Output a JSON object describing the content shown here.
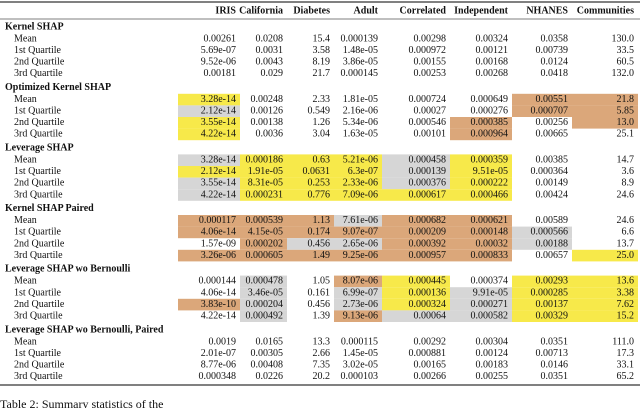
{
  "shades": {
    "yellow": "#f7e94a",
    "gray": "#d6d6d6",
    "orange": "#dba77a"
  },
  "header": {
    "columns": [
      "IRIS",
      "California",
      "Diabetes",
      "Adult",
      "Correlated",
      "Independent",
      "NHANES",
      "Communities"
    ]
  },
  "sections": [
    {
      "title": "Kernel SHAP",
      "rows": [
        {
          "label": "Mean",
          "cells": [
            {
              "text": "0.00261"
            },
            {
              "text": "0.0208"
            },
            {
              "text": "15.4"
            },
            {
              "text": "0.000139"
            },
            {
              "text": "0.00298"
            },
            {
              "text": "0.00324"
            },
            {
              "text": "0.0358"
            },
            {
              "text": "130.0"
            }
          ]
        },
        {
          "label": "1st Quartile",
          "cells": [
            {
              "text": "5.69e-07"
            },
            {
              "text": "0.0031"
            },
            {
              "text": "3.58"
            },
            {
              "text": "1.48e-05"
            },
            {
              "text": "0.000972"
            },
            {
              "text": "0.00121"
            },
            {
              "text": "0.00739"
            },
            {
              "text": "33.5"
            }
          ]
        },
        {
          "label": "2nd Quartile",
          "cells": [
            {
              "text": "9.52e-06"
            },
            {
              "text": "0.0043"
            },
            {
              "text": "8.19"
            },
            {
              "text": "3.86e-05"
            },
            {
              "text": "0.00155"
            },
            {
              "text": "0.00168"
            },
            {
              "text": "0.0124"
            },
            {
              "text": "60.5"
            }
          ]
        },
        {
          "label": "3rd Quartile",
          "cells": [
            {
              "text": "0.00181"
            },
            {
              "text": "0.029"
            },
            {
              "text": "21.7"
            },
            {
              "text": "0.000145"
            },
            {
              "text": "0.00253"
            },
            {
              "text": "0.00268"
            },
            {
              "text": "0.0418"
            },
            {
              "text": "132.0"
            }
          ]
        }
      ]
    },
    {
      "title": "Optimized Kernel SHAP",
      "rows": [
        {
          "label": "Mean",
          "cells": [
            {
              "text": "3.28e-14",
              "shade": "yellow"
            },
            {
              "text": "0.00248"
            },
            {
              "text": "2.33"
            },
            {
              "text": "1.81e-05"
            },
            {
              "text": "0.000724"
            },
            {
              "text": "0.000649"
            },
            {
              "text": "0.00551",
              "shade": "orange"
            },
            {
              "text": "21.8",
              "shade": "orange"
            }
          ]
        },
        {
          "label": "1st Quartile",
          "cells": [
            {
              "text": "2.12e-14",
              "shade": "gray"
            },
            {
              "text": "0.00126"
            },
            {
              "text": "0.549"
            },
            {
              "text": "2.16e-06"
            },
            {
              "text": "0.00027"
            },
            {
              "text": "0.000276"
            },
            {
              "text": "0.000707",
              "shade": "orange"
            },
            {
              "text": "5.85",
              "shade": "orange"
            }
          ]
        },
        {
          "label": "2nd Quartile",
          "cells": [
            {
              "text": "3.55e-14",
              "shade": "yellow"
            },
            {
              "text": "0.00138"
            },
            {
              "text": "1.26"
            },
            {
              "text": "5.34e-06"
            },
            {
              "text": "0.000546"
            },
            {
              "text": "0.000385",
              "shade": "orange"
            },
            {
              "text": "0.00256"
            },
            {
              "text": "13.0",
              "shade": "orange"
            }
          ]
        },
        {
          "label": "3rd Quartile",
          "cells": [
            {
              "text": "4.22e-14",
              "shade": "yellow"
            },
            {
              "text": "0.0036"
            },
            {
              "text": "3.04"
            },
            {
              "text": "1.63e-05"
            },
            {
              "text": "0.00101"
            },
            {
              "text": "0.000964",
              "shade": "orange"
            },
            {
              "text": "0.00665"
            },
            {
              "text": "25.1"
            }
          ]
        }
      ]
    },
    {
      "title": "Leverage SHAP",
      "rows": [
        {
          "label": "Mean",
          "cells": [
            {
              "text": "3.28e-14",
              "shade": "gray"
            },
            {
              "text": "0.000186",
              "shade": "yellow"
            },
            {
              "text": "0.63",
              "shade": "yellow"
            },
            {
              "text": "5.21e-06",
              "shade": "yellow"
            },
            {
              "text": "0.000458",
              "shade": "gray"
            },
            {
              "text": "0.000359",
              "shade": "yellow"
            },
            {
              "text": "0.00385"
            },
            {
              "text": "14.7"
            }
          ]
        },
        {
          "label": "1st Quartile",
          "cells": [
            {
              "text": "2.12e-14",
              "shade": "yellow"
            },
            {
              "text": "1.91e-05",
              "shade": "yellow"
            },
            {
              "text": "0.0631",
              "shade": "yellow"
            },
            {
              "text": "6.3e-07",
              "shade": "yellow"
            },
            {
              "text": "0.000139",
              "shade": "gray"
            },
            {
              "text": "9.51e-05",
              "shade": "yellow"
            },
            {
              "text": "0.000364"
            },
            {
              "text": "3.6"
            }
          ]
        },
        {
          "label": "2nd Quartile",
          "cells": [
            {
              "text": "3.55e-14",
              "shade": "gray"
            },
            {
              "text": "8.31e-05",
              "shade": "yellow"
            },
            {
              "text": "0.253",
              "shade": "yellow"
            },
            {
              "text": "2.33e-06",
              "shade": "yellow"
            },
            {
              "text": "0.000376",
              "shade": "gray"
            },
            {
              "text": "0.000222",
              "shade": "yellow"
            },
            {
              "text": "0.00149"
            },
            {
              "text": "8.9"
            }
          ]
        },
        {
          "label": "3rd Quartile",
          "cells": [
            {
              "text": "4.22e-14",
              "shade": "gray"
            },
            {
              "text": "0.000231",
              "shade": "yellow"
            },
            {
              "text": "0.776",
              "shade": "yellow"
            },
            {
              "text": "7.09e-06",
              "shade": "yellow"
            },
            {
              "text": "0.000617",
              "shade": "yellow"
            },
            {
              "text": "0.000466",
              "shade": "yellow"
            },
            {
              "text": "0.00424"
            },
            {
              "text": "24.6"
            }
          ]
        }
      ]
    },
    {
      "title": "Kernel SHAP Paired",
      "rows": [
        {
          "label": "Mean",
          "cells": [
            {
              "text": "0.000117",
              "shade": "orange"
            },
            {
              "text": "0.000539",
              "shade": "orange"
            },
            {
              "text": "1.13",
              "shade": "orange"
            },
            {
              "text": "7.61e-06",
              "shade": "gray"
            },
            {
              "text": "0.000682",
              "shade": "orange"
            },
            {
              "text": "0.000621",
              "shade": "orange"
            },
            {
              "text": "0.00589"
            },
            {
              "text": "24.6"
            }
          ]
        },
        {
          "label": "1st Quartile",
          "cells": [
            {
              "text": "4.06e-14",
              "shade": "orange"
            },
            {
              "text": "4.15e-05",
              "shade": "orange"
            },
            {
              "text": "0.174",
              "shade": "orange"
            },
            {
              "text": "9.07e-07",
              "shade": "orange"
            },
            {
              "text": "0.000209",
              "shade": "orange"
            },
            {
              "text": "0.000148",
              "shade": "orange"
            },
            {
              "text": "0.000566",
              "shade": "gray"
            },
            {
              "text": "6.6"
            }
          ]
        },
        {
          "label": "2nd Quartile",
          "cells": [
            {
              "text": "1.57e-09"
            },
            {
              "text": "0.000202",
              "shade": "orange"
            },
            {
              "text": "0.456",
              "shade": "gray"
            },
            {
              "text": "2.65e-06",
              "shade": "gray"
            },
            {
              "text": "0.000392",
              "shade": "orange"
            },
            {
              "text": "0.00032",
              "shade": "orange"
            },
            {
              "text": "0.00188",
              "shade": "gray"
            },
            {
              "text": "13.7"
            }
          ]
        },
        {
          "label": "3rd Quartile",
          "cells": [
            {
              "text": "3.26e-06",
              "shade": "orange"
            },
            {
              "text": "0.000605",
              "shade": "orange"
            },
            {
              "text": "1.49",
              "shade": "orange"
            },
            {
              "text": "9.25e-06",
              "shade": "orange"
            },
            {
              "text": "0.000957",
              "shade": "orange"
            },
            {
              "text": "0.000833",
              "shade": "orange"
            },
            {
              "text": "0.00657"
            },
            {
              "text": "25.0",
              "shade": "yellow"
            }
          ]
        }
      ]
    },
    {
      "title": "Leverage SHAP wo Bernoulli",
      "rows": [
        {
          "label": "Mean",
          "cells": [
            {
              "text": "0.000144"
            },
            {
              "text": "0.000478",
              "shade": "gray"
            },
            {
              "text": "1.05"
            },
            {
              "text": "8.07e-06",
              "shade": "orange"
            },
            {
              "text": "0.000445",
              "shade": "yellow"
            },
            {
              "text": "0.000374"
            },
            {
              "text": "0.00293",
              "shade": "yellow"
            },
            {
              "text": "13.6",
              "shade": "yellow"
            }
          ]
        },
        {
          "label": "1st Quartile",
          "cells": [
            {
              "text": "4.06e-14"
            },
            {
              "text": "3.46e-05",
              "shade": "gray"
            },
            {
              "text": "0.161"
            },
            {
              "text": "6.99e-07",
              "shade": "gray"
            },
            {
              "text": "0.000136",
              "shade": "yellow"
            },
            {
              "text": "9.91e-05",
              "shade": "gray"
            },
            {
              "text": "0.000285",
              "shade": "yellow"
            },
            {
              "text": "3.38",
              "shade": "yellow"
            }
          ]
        },
        {
          "label": "2nd Quartile",
          "cells": [
            {
              "text": "3.83e-10",
              "shade": "orange"
            },
            {
              "text": "0.000204",
              "shade": "gray"
            },
            {
              "text": "0.456"
            },
            {
              "text": "2.73e-06",
              "shade": "gray"
            },
            {
              "text": "0.000324",
              "shade": "yellow"
            },
            {
              "text": "0.000271",
              "shade": "gray"
            },
            {
              "text": "0.00137",
              "shade": "yellow"
            },
            {
              "text": "7.62",
              "shade": "yellow"
            }
          ]
        },
        {
          "label": "3rd Quartile",
          "cells": [
            {
              "text": "4.22e-14"
            },
            {
              "text": "0.000492",
              "shade": "gray"
            },
            {
              "text": "1.39"
            },
            {
              "text": "9.13e-06",
              "shade": "orange"
            },
            {
              "text": "0.00064",
              "shade": "gray"
            },
            {
              "text": "0.000582",
              "shade": "gray"
            },
            {
              "text": "0.00329",
              "shade": "yellow"
            },
            {
              "text": "15.2",
              "shade": "yellow"
            }
          ]
        }
      ]
    },
    {
      "title": "Leverage SHAP wo Bernoulli, Paired",
      "rows": [
        {
          "label": "Mean",
          "cells": [
            {
              "text": "0.0019"
            },
            {
              "text": "0.0165"
            },
            {
              "text": "13.3"
            },
            {
              "text": "0.000115"
            },
            {
              "text": "0.00292"
            },
            {
              "text": "0.00304"
            },
            {
              "text": "0.0351"
            },
            {
              "text": "111.0"
            }
          ]
        },
        {
          "label": "1st Quartile",
          "cells": [
            {
              "text": "2.01e-07"
            },
            {
              "text": "0.00305"
            },
            {
              "text": "2.66"
            },
            {
              "text": "1.45e-05"
            },
            {
              "text": "0.000881"
            },
            {
              "text": "0.00124"
            },
            {
              "text": "0.00713"
            },
            {
              "text": "17.3"
            }
          ]
        },
        {
          "label": "2nd Quartile",
          "cells": [
            {
              "text": "8.77e-06"
            },
            {
              "text": "0.00408"
            },
            {
              "text": "7.35"
            },
            {
              "text": "3.02e-05"
            },
            {
              "text": "0.00165"
            },
            {
              "text": "0.00183"
            },
            {
              "text": "0.0146"
            },
            {
              "text": "33.1"
            }
          ]
        },
        {
          "label": "3rd Quartile",
          "cells": [
            {
              "text": "0.000348"
            },
            {
              "text": "0.0226"
            },
            {
              "text": "20.2"
            },
            {
              "text": "0.000103"
            },
            {
              "text": "0.00266"
            },
            {
              "text": "0.00255"
            },
            {
              "text": "0.0351"
            },
            {
              "text": "65.2"
            }
          ]
        }
      ]
    }
  ],
  "caption": "Table 2: Summary statistics of the"
}
